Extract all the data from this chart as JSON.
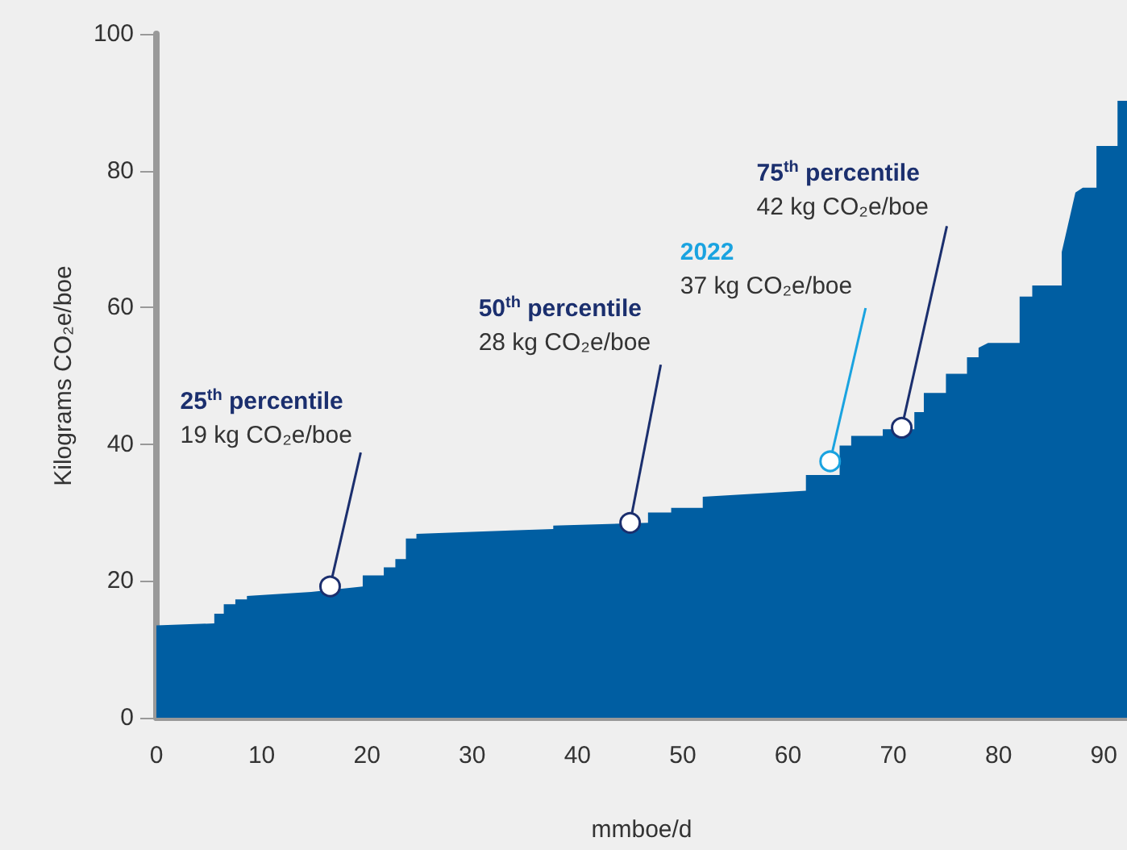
{
  "chart_data": {
    "type": "area",
    "xlabel": "mmboe/d",
    "ylabel": "Kilograms CO₂e/boe",
    "x": [
      0,
      5.5,
      5.5,
      6.4,
      6.4,
      7.5,
      7.5,
      8.6,
      8.6,
      14.7,
      19.6,
      19.6,
      21.6,
      21.6,
      22.7,
      22.7,
      23.7,
      23.7,
      24.7,
      24.7,
      33.7,
      37.7,
      37.7,
      46.7,
      46.7,
      48.9,
      48.9,
      51.9,
      51.9,
      61.7,
      61.7,
      64.9,
      64.9,
      66,
      66,
      69,
      69,
      72,
      72,
      72.9,
      72.9,
      75,
      75,
      77,
      77,
      78.1,
      78.1,
      79,
      82,
      82,
      83.2,
      83.2,
      86,
      86,
      87.3,
      88,
      89.3,
      89.3,
      91.3,
      91.3,
      92.2
    ],
    "series": [
      {
        "color": "#005ea2",
        "values": [
          13.5,
          13.8,
          15.2,
          15.2,
          16.6,
          16.6,
          17.3,
          17.3,
          17.8,
          18.4,
          19.2,
          20.8,
          20.8,
          22,
          22,
          23.2,
          23.2,
          26.2,
          26.2,
          26.9,
          27.4,
          27.6,
          28.1,
          28.5,
          30,
          30,
          30.7,
          30.7,
          32.3,
          33.2,
          35.5,
          35.5,
          39.8,
          39.8,
          41.2,
          41.2,
          42.2,
          42.2,
          44.7,
          44.7,
          47.5,
          47.5,
          50.3,
          50.3,
          52.7,
          52.7,
          54.1,
          54.8,
          54.8,
          61.6,
          61.6,
          63.2,
          63.2,
          68.1,
          76.8,
          77.5,
          77.5,
          83.6,
          83.6,
          90.2,
          90.2
        ]
      }
    ],
    "xlim": [
      0,
      92.2
    ],
    "xticks": [
      0,
      10,
      20,
      30,
      40,
      50,
      60,
      70,
      80,
      90
    ],
    "ylim": [
      0,
      100
    ],
    "yticks": [
      0,
      20,
      40,
      60,
      80,
      100
    ],
    "annotations": [
      {
        "text": "25$^{th}$ percentile\n19 kg CO₂e/boe",
        "x": 16.5,
        "y": 19.2
      },
      {
        "text": "50$^{th}$ percentile\n28 kg CO₂e/boe",
        "x": 45,
        "y": 28.5
      },
      {
        "text": "2022\n37 kg CO₂e/boe",
        "x": 64,
        "y": 37.5
      },
      {
        "text": "75$^{th}$ percentile\n42 kg CO₂e/boe",
        "x": 70.8,
        "y": 42.4
      }
    ]
  }
}
